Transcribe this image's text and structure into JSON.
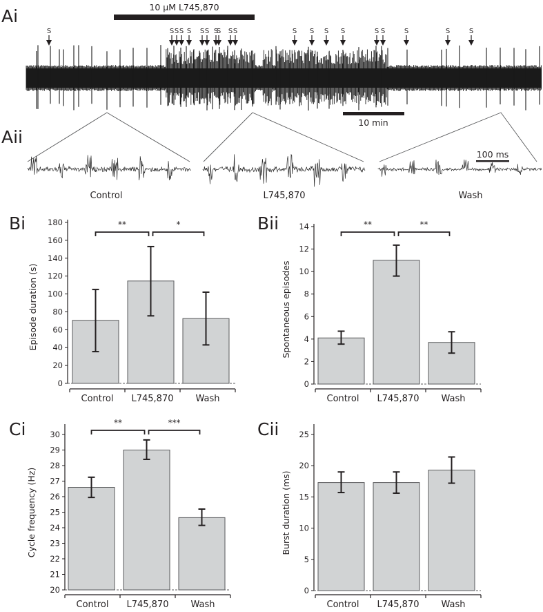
{
  "figure": {
    "panel_labels": {
      "Ai": "Ai",
      "Aii": "Aii",
      "Bi": "Bi",
      "Bii": "Bii",
      "Ci": "Ci",
      "Cii": "Cii"
    },
    "drug_label": "10 μM L745,870",
    "episode_marker": "S",
    "time_scale_label": "10 min",
    "fast_scale_label": "100 ms",
    "trace_labels": [
      "Control",
      "L745,870",
      "Wash"
    ],
    "episode_marker_count": 20,
    "colors": {
      "ink": "#231f20",
      "bar_fill": "#d1d3d4",
      "bar_edge": "#58595b",
      "trace": "#1a1a1a"
    }
  },
  "chart_data": [
    {
      "id": "Bi",
      "type": "bar",
      "title": "",
      "xlabel": "",
      "ylabel": "Episode duration (s)",
      "categories": [
        "Control",
        "L745,870",
        "Wash"
      ],
      "values": [
        70.5,
        114.5,
        72.5
      ],
      "error_low": [
        35.5,
        75.5,
        43
      ],
      "error_high": [
        105,
        153,
        102
      ],
      "ylim": [
        0,
        180
      ],
      "yticks": [
        0,
        20,
        40,
        60,
        80,
        100,
        120,
        140,
        160,
        180
      ],
      "significance": [
        {
          "from": 0,
          "to": 1,
          "label": "**"
        },
        {
          "from": 1,
          "to": 2,
          "label": "*"
        }
      ],
      "grid": false
    },
    {
      "id": "Bii",
      "type": "bar",
      "title": "",
      "xlabel": "",
      "ylabel": "Spontaneous episodes",
      "categories": [
        "Control",
        "L745,870",
        "Wash"
      ],
      "values": [
        4.1,
        11.0,
        3.7
      ],
      "error_low": [
        3.55,
        9.6,
        2.75
      ],
      "error_high": [
        4.7,
        12.35,
        4.65
      ],
      "ylim": [
        0,
        14
      ],
      "yticks": [
        0,
        2,
        4,
        6,
        8,
        10,
        12,
        14
      ],
      "significance": [
        {
          "from": 0,
          "to": 1,
          "label": "**"
        },
        {
          "from": 1,
          "to": 2,
          "label": "**"
        }
      ],
      "grid": false
    },
    {
      "id": "Ci",
      "type": "bar",
      "title": "",
      "xlabel": "",
      "ylabel": "Cycle frequency (Hz)",
      "categories": [
        "Control",
        "L745,870",
        "Wash"
      ],
      "values": [
        26.6,
        29.0,
        24.65
      ],
      "error_low": [
        25.95,
        28.4,
        24.15
      ],
      "error_high": [
        27.25,
        29.65,
        25.2
      ],
      "ylim": [
        20,
        30
      ],
      "yticks": [
        20,
        21,
        22,
        23,
        24,
        25,
        26,
        27,
        28,
        29,
        30
      ],
      "significance": [
        {
          "from": 0,
          "to": 1,
          "label": "**"
        },
        {
          "from": 1,
          "to": 2,
          "label": "***"
        }
      ],
      "grid": false
    },
    {
      "id": "Cii",
      "type": "bar",
      "title": "",
      "xlabel": "",
      "ylabel": "Burst duration (ms)",
      "categories": [
        "Control",
        "L745,870",
        "Wash"
      ],
      "values": [
        17.3,
        17.3,
        19.3
      ],
      "error_low": [
        15.7,
        15.6,
        17.2
      ],
      "error_high": [
        19.0,
        19.0,
        21.4
      ],
      "ylim": [
        0,
        25
      ],
      "yticks": [
        0,
        5,
        10,
        15,
        20,
        25
      ],
      "significance": [],
      "grid": false
    }
  ]
}
